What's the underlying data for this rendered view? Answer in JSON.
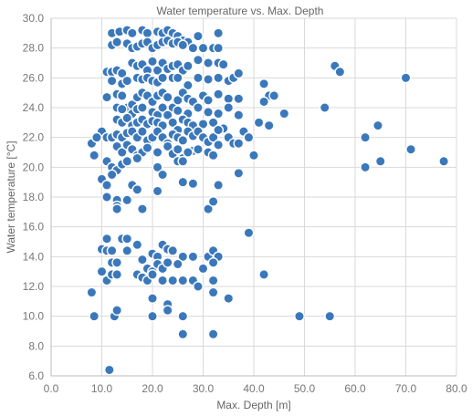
{
  "chart_data": {
    "type": "scatter",
    "title": "Water temperature vs. Max. Depth",
    "xlabel": "Max. Depth [m]",
    "ylabel": "Water temperature [°C]",
    "xlim": [
      0,
      80
    ],
    "ylim": [
      6,
      30
    ],
    "xticks": [
      "0.0",
      "10.0",
      "20.0",
      "30.0",
      "40.0",
      "50.0",
      "60.0",
      "70.0",
      "80.0"
    ],
    "yticks": [
      "6.0",
      "8.0",
      "10.0",
      "12.0",
      "14.0",
      "16.0",
      "18.0",
      "20.0",
      "22.0",
      "24.0",
      "26.0",
      "28.0",
      "30.0"
    ],
    "grid": true,
    "legend": "none",
    "series": [
      {
        "color": "#3a78bb",
        "points": [
          [
            12,
            29.0
          ],
          [
            13.5,
            29.1
          ],
          [
            15,
            29.2
          ],
          [
            16,
            29.0
          ],
          [
            18,
            29.2
          ],
          [
            19,
            29.0
          ],
          [
            21,
            29.1
          ],
          [
            22,
            29.0
          ],
          [
            23,
            29.2
          ],
          [
            24,
            29.0
          ],
          [
            25,
            28.8
          ],
          [
            26,
            28.5
          ],
          [
            27,
            28.4
          ],
          [
            29,
            28.8
          ],
          [
            33,
            29.0
          ],
          [
            12,
            28.2
          ],
          [
            13,
            28.4
          ],
          [
            15,
            28.3
          ],
          [
            16,
            28.0
          ],
          [
            17,
            28.1
          ],
          [
            18,
            28.3
          ],
          [
            19,
            28.4
          ],
          [
            20,
            28.0
          ],
          [
            21,
            28.2
          ],
          [
            22,
            28.4
          ],
          [
            23,
            28.5
          ],
          [
            24,
            28.3
          ],
          [
            25,
            28.4
          ],
          [
            26,
            28.2
          ],
          [
            28,
            28.0
          ],
          [
            30,
            28.0
          ],
          [
            32,
            28.0
          ],
          [
            33,
            28.0
          ],
          [
            11,
            26.4
          ],
          [
            12,
            26.4
          ],
          [
            13,
            26.5
          ],
          [
            14,
            26.3
          ],
          [
            16,
            27.0
          ],
          [
            17,
            26.8
          ],
          [
            18,
            26.9
          ],
          [
            19,
            26.5
          ],
          [
            20,
            27.1
          ],
          [
            21,
            26.5
          ],
          [
            22,
            27.0
          ],
          [
            23,
            26.6
          ],
          [
            24,
            26.8
          ],
          [
            25,
            26.9
          ],
          [
            26,
            26.5
          ],
          [
            27,
            26.8
          ],
          [
            29,
            27.2
          ],
          [
            31,
            27.0
          ],
          [
            33,
            27.0
          ],
          [
            34,
            26.9
          ],
          [
            12,
            25.8
          ],
          [
            14,
            25.6
          ],
          [
            15,
            25.8
          ],
          [
            17,
            26.0
          ],
          [
            18,
            25.9
          ],
          [
            19,
            26.0
          ],
          [
            20,
            25.8
          ],
          [
            21,
            25.7
          ],
          [
            22,
            26.0
          ],
          [
            24,
            26.0
          ],
          [
            25,
            26.0
          ],
          [
            27,
            25.5
          ],
          [
            29,
            26.0
          ],
          [
            31,
            25.9
          ],
          [
            33,
            26.0
          ],
          [
            35,
            25.8
          ],
          [
            36,
            26.0
          ],
          [
            37,
            26.3
          ],
          [
            11,
            24.7
          ],
          [
            13,
            24.9
          ],
          [
            14,
            24.8
          ],
          [
            15,
            24.0
          ],
          [
            16,
            24.2
          ],
          [
            17,
            24.7
          ],
          [
            18,
            25.0
          ],
          [
            19,
            24.8
          ],
          [
            20,
            24.4
          ],
          [
            21,
            24.8
          ],
          [
            22,
            25.0
          ],
          [
            23,
            24.7
          ],
          [
            24,
            24.0
          ],
          [
            25,
            24.5
          ],
          [
            26,
            25.0
          ],
          [
            27,
            24.6
          ],
          [
            28,
            24.4
          ],
          [
            30,
            24.8
          ],
          [
            31,
            24.5
          ],
          [
            33,
            24.9
          ],
          [
            35,
            24.6
          ],
          [
            37,
            24.6
          ],
          [
            13,
            24.0
          ],
          [
            14,
            23.9
          ],
          [
            16,
            23.6
          ],
          [
            17,
            23.9
          ],
          [
            18,
            24.0
          ],
          [
            20,
            23.7
          ],
          [
            21,
            23.5
          ],
          [
            22,
            24.0
          ],
          [
            23,
            23.5
          ],
          [
            25,
            23.8
          ],
          [
            27,
            23.6
          ],
          [
            29,
            24.0
          ],
          [
            31,
            23.7
          ],
          [
            33,
            23.6
          ],
          [
            35,
            24.0
          ],
          [
            37,
            23.5
          ],
          [
            13,
            23.2
          ],
          [
            14,
            23.0
          ],
          [
            15,
            23.3
          ],
          [
            16,
            22.8
          ],
          [
            17,
            23.0
          ],
          [
            18,
            23.2
          ],
          [
            19,
            22.9
          ],
          [
            20,
            23.1
          ],
          [
            21,
            23.0
          ],
          [
            22,
            22.8
          ],
          [
            24,
            23.0
          ],
          [
            25,
            22.5
          ],
          [
            26,
            23.2
          ],
          [
            27,
            23.0
          ],
          [
            28,
            22.8
          ],
          [
            30,
            22.9
          ],
          [
            32,
            23.0
          ],
          [
            34,
            22.6
          ],
          [
            10,
            22.4
          ],
          [
            11,
            22.0
          ],
          [
            12,
            22.0
          ],
          [
            13,
            22.2
          ],
          [
            14,
            22.0
          ],
          [
            15,
            22.3
          ],
          [
            16,
            22.4
          ],
          [
            17,
            22.0
          ],
          [
            18,
            22.4
          ],
          [
            19,
            21.8
          ],
          [
            20,
            22.0
          ],
          [
            21,
            22.4
          ],
          [
            22,
            22.0
          ],
          [
            23,
            21.6
          ],
          [
            24,
            22.2
          ],
          [
            25,
            22.0
          ],
          [
            26,
            21.8
          ],
          [
            27,
            22.4
          ],
          [
            28,
            22.1
          ],
          [
            29,
            22.4
          ],
          [
            30,
            22.0
          ],
          [
            31,
            21.7
          ],
          [
            32,
            22.0
          ],
          [
            33,
            22.5
          ],
          [
            35,
            22.0
          ],
          [
            36,
            21.6
          ],
          [
            37,
            21.6
          ],
          [
            38,
            22.4
          ],
          [
            39,
            22.0
          ],
          [
            8,
            21.6
          ],
          [
            9,
            22.0
          ],
          [
            13,
            21.4
          ],
          [
            14,
            21.0
          ],
          [
            15,
            21.5
          ],
          [
            16,
            21.2
          ],
          [
            17,
            20.8
          ],
          [
            18,
            21.0
          ],
          [
            19,
            21.3
          ],
          [
            21,
            21.0
          ],
          [
            23,
            21.4
          ],
          [
            24,
            20.9
          ],
          [
            25,
            21.2
          ],
          [
            26,
            20.6
          ],
          [
            28,
            21.1
          ],
          [
            29,
            21.2
          ],
          [
            31,
            21.0
          ],
          [
            32,
            20.8
          ],
          [
            33,
            21.5
          ],
          [
            8.5,
            20.8
          ],
          [
            11,
            20.4
          ],
          [
            12,
            20.0
          ],
          [
            13,
            19.8
          ],
          [
            14,
            20.2
          ],
          [
            15,
            20.4
          ],
          [
            17,
            20.6
          ],
          [
            21,
            20.0
          ],
          [
            22,
            19.5
          ],
          [
            25,
            20.4
          ],
          [
            26,
            20.4
          ],
          [
            27,
            21.0
          ],
          [
            37,
            19.6
          ],
          [
            40,
            20.8
          ],
          [
            10,
            19.2
          ],
          [
            11,
            18.8
          ],
          [
            12,
            19.5
          ],
          [
            16,
            18.8
          ],
          [
            17,
            18.5
          ],
          [
            21,
            18.4
          ],
          [
            26,
            19.0
          ],
          [
            28,
            18.9
          ],
          [
            33,
            18.8
          ],
          [
            11,
            18.0
          ],
          [
            13,
            17.8
          ],
          [
            15,
            17.8
          ],
          [
            18,
            17.2
          ],
          [
            13,
            17.4
          ],
          [
            13,
            17.2
          ],
          [
            31,
            17.2
          ],
          [
            32,
            17.7
          ],
          [
            14,
            15.2
          ],
          [
            15,
            15.2
          ],
          [
            11,
            15.2
          ],
          [
            39,
            15.6
          ],
          [
            10,
            14.5
          ],
          [
            11,
            14.4
          ],
          [
            12,
            14.4
          ],
          [
            15,
            14.4
          ],
          [
            17,
            14.8
          ],
          [
            20,
            14.2
          ],
          [
            21,
            14.0
          ],
          [
            22,
            14.8
          ],
          [
            23,
            14.5
          ],
          [
            24,
            14.4
          ],
          [
            26,
            14.0
          ],
          [
            28,
            14.0
          ],
          [
            31,
            14.0
          ],
          [
            32,
            14.4
          ],
          [
            33,
            14.0
          ],
          [
            12,
            13.6
          ],
          [
            13,
            13.6
          ],
          [
            18,
            13.8
          ],
          [
            19,
            13.2
          ],
          [
            20,
            13.0
          ],
          [
            21,
            13.5
          ],
          [
            22,
            13.2
          ],
          [
            23,
            13.6
          ],
          [
            25,
            13.5
          ],
          [
            30,
            13.2
          ],
          [
            32,
            13.6
          ],
          [
            10,
            13.0
          ],
          [
            11,
            12.4
          ],
          [
            12,
            12.8
          ],
          [
            13,
            12.8
          ],
          [
            17,
            12.8
          ],
          [
            18,
            12.6
          ],
          [
            19,
            12.4
          ],
          [
            20,
            12.8
          ],
          [
            22,
            12.4
          ],
          [
            24,
            12.4
          ],
          [
            26,
            12.4
          ],
          [
            28,
            12.4
          ],
          [
            29,
            12.0
          ],
          [
            32,
            12.4
          ],
          [
            42,
            12.8
          ],
          [
            8,
            11.6
          ],
          [
            20,
            11.2
          ],
          [
            23,
            10.8
          ],
          [
            23,
            10.4
          ],
          [
            32,
            11.6
          ],
          [
            35,
            11.2
          ],
          [
            8.5,
            10.0
          ],
          [
            12.5,
            10.0
          ],
          [
            13,
            10.4
          ],
          [
            20,
            10.0
          ],
          [
            26,
            10.0
          ],
          [
            49,
            10.0
          ],
          [
            55,
            10.0
          ],
          [
            26,
            8.8
          ],
          [
            32,
            8.8
          ],
          [
            11.5,
            6.4
          ],
          [
            42,
            25.6
          ],
          [
            43,
            24.8
          ],
          [
            44,
            24.8
          ],
          [
            42,
            24.4
          ],
          [
            41,
            23.0
          ],
          [
            43,
            22.8
          ],
          [
            46,
            23.6
          ],
          [
            54,
            24.0
          ],
          [
            56,
            26.8
          ],
          [
            57,
            26.4
          ],
          [
            70,
            26.0
          ],
          [
            62,
            22.0
          ],
          [
            64.5,
            22.8
          ],
          [
            71,
            21.2
          ],
          [
            62,
            20.0
          ],
          [
            65,
            20.4
          ],
          [
            77.5,
            20.4
          ]
        ]
      }
    ]
  }
}
